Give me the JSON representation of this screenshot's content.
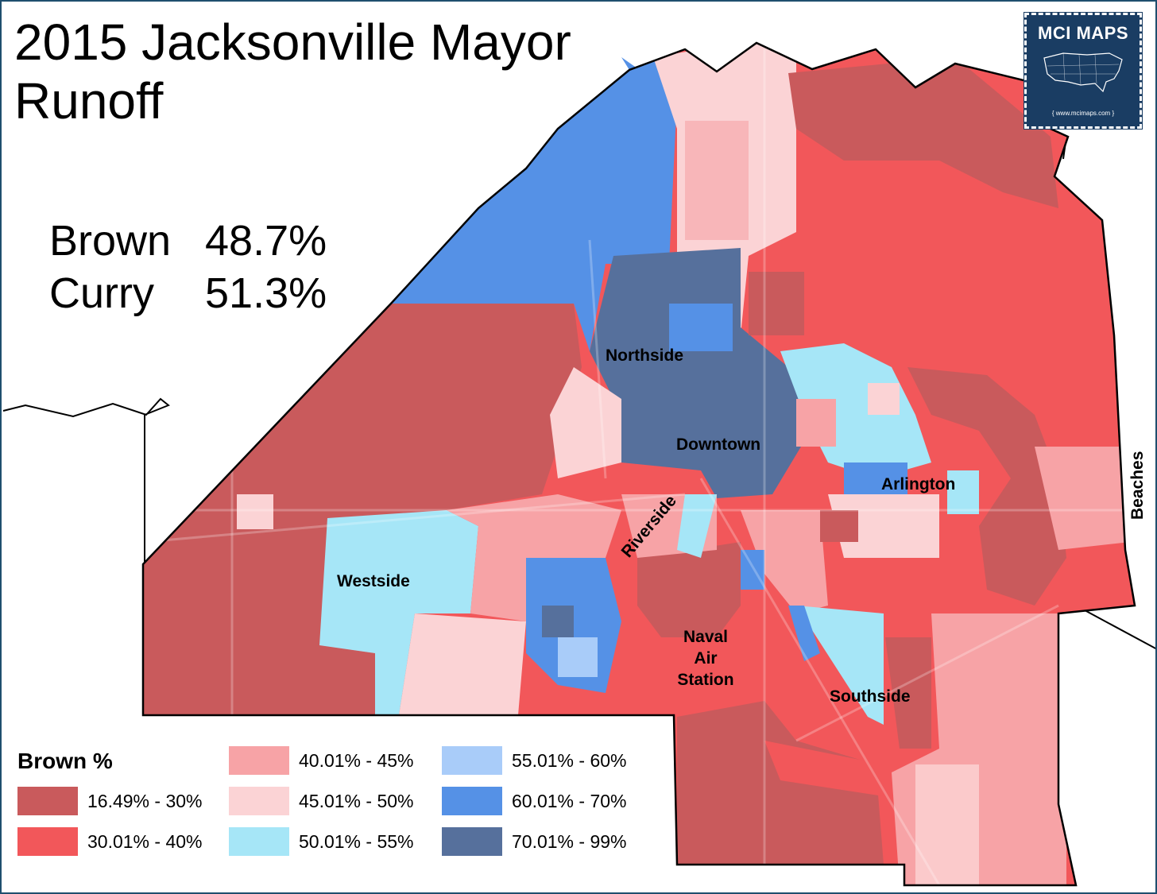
{
  "title_line1": "2015 Jacksonville Mayor",
  "title_line2": "Runoff",
  "results": [
    {
      "name": "Brown",
      "pct": "48.7%"
    },
    {
      "name": "Curry",
      "pct": "51.3%"
    }
  ],
  "logo": {
    "text": "MCI MAPS",
    "url": "{ www.mcimaps.com }"
  },
  "neighborhoods": {
    "northside": "Northside",
    "downtown": "Downtown",
    "riverside": "Riverside",
    "arlington": "Arlington",
    "westside": "Westside",
    "naval_line1": "Naval",
    "naval_line2": "Air",
    "naval_line3": "Station",
    "southside": "Southside",
    "beaches": "Beaches"
  },
  "legend": {
    "title": "Brown %",
    "items": [
      {
        "label": "16.49% - 30%",
        "color": "#c95a5c"
      },
      {
        "label": "30.01% - 40%",
        "color": "#f2575a"
      },
      {
        "label": "40.01% - 45%",
        "color": "#f7a3a6"
      },
      {
        "label": "45.01% - 50%",
        "color": "#fbd3d5"
      },
      {
        "label": "50.01% - 55%",
        "color": "#a6e6f7"
      },
      {
        "label": "55.01% - 60%",
        "color": "#a9ccf9"
      },
      {
        "label": "60.01% - 70%",
        "color": "#5591e6"
      },
      {
        "label": "70.01% - 99%",
        "color": "#56709c"
      }
    ]
  }
}
